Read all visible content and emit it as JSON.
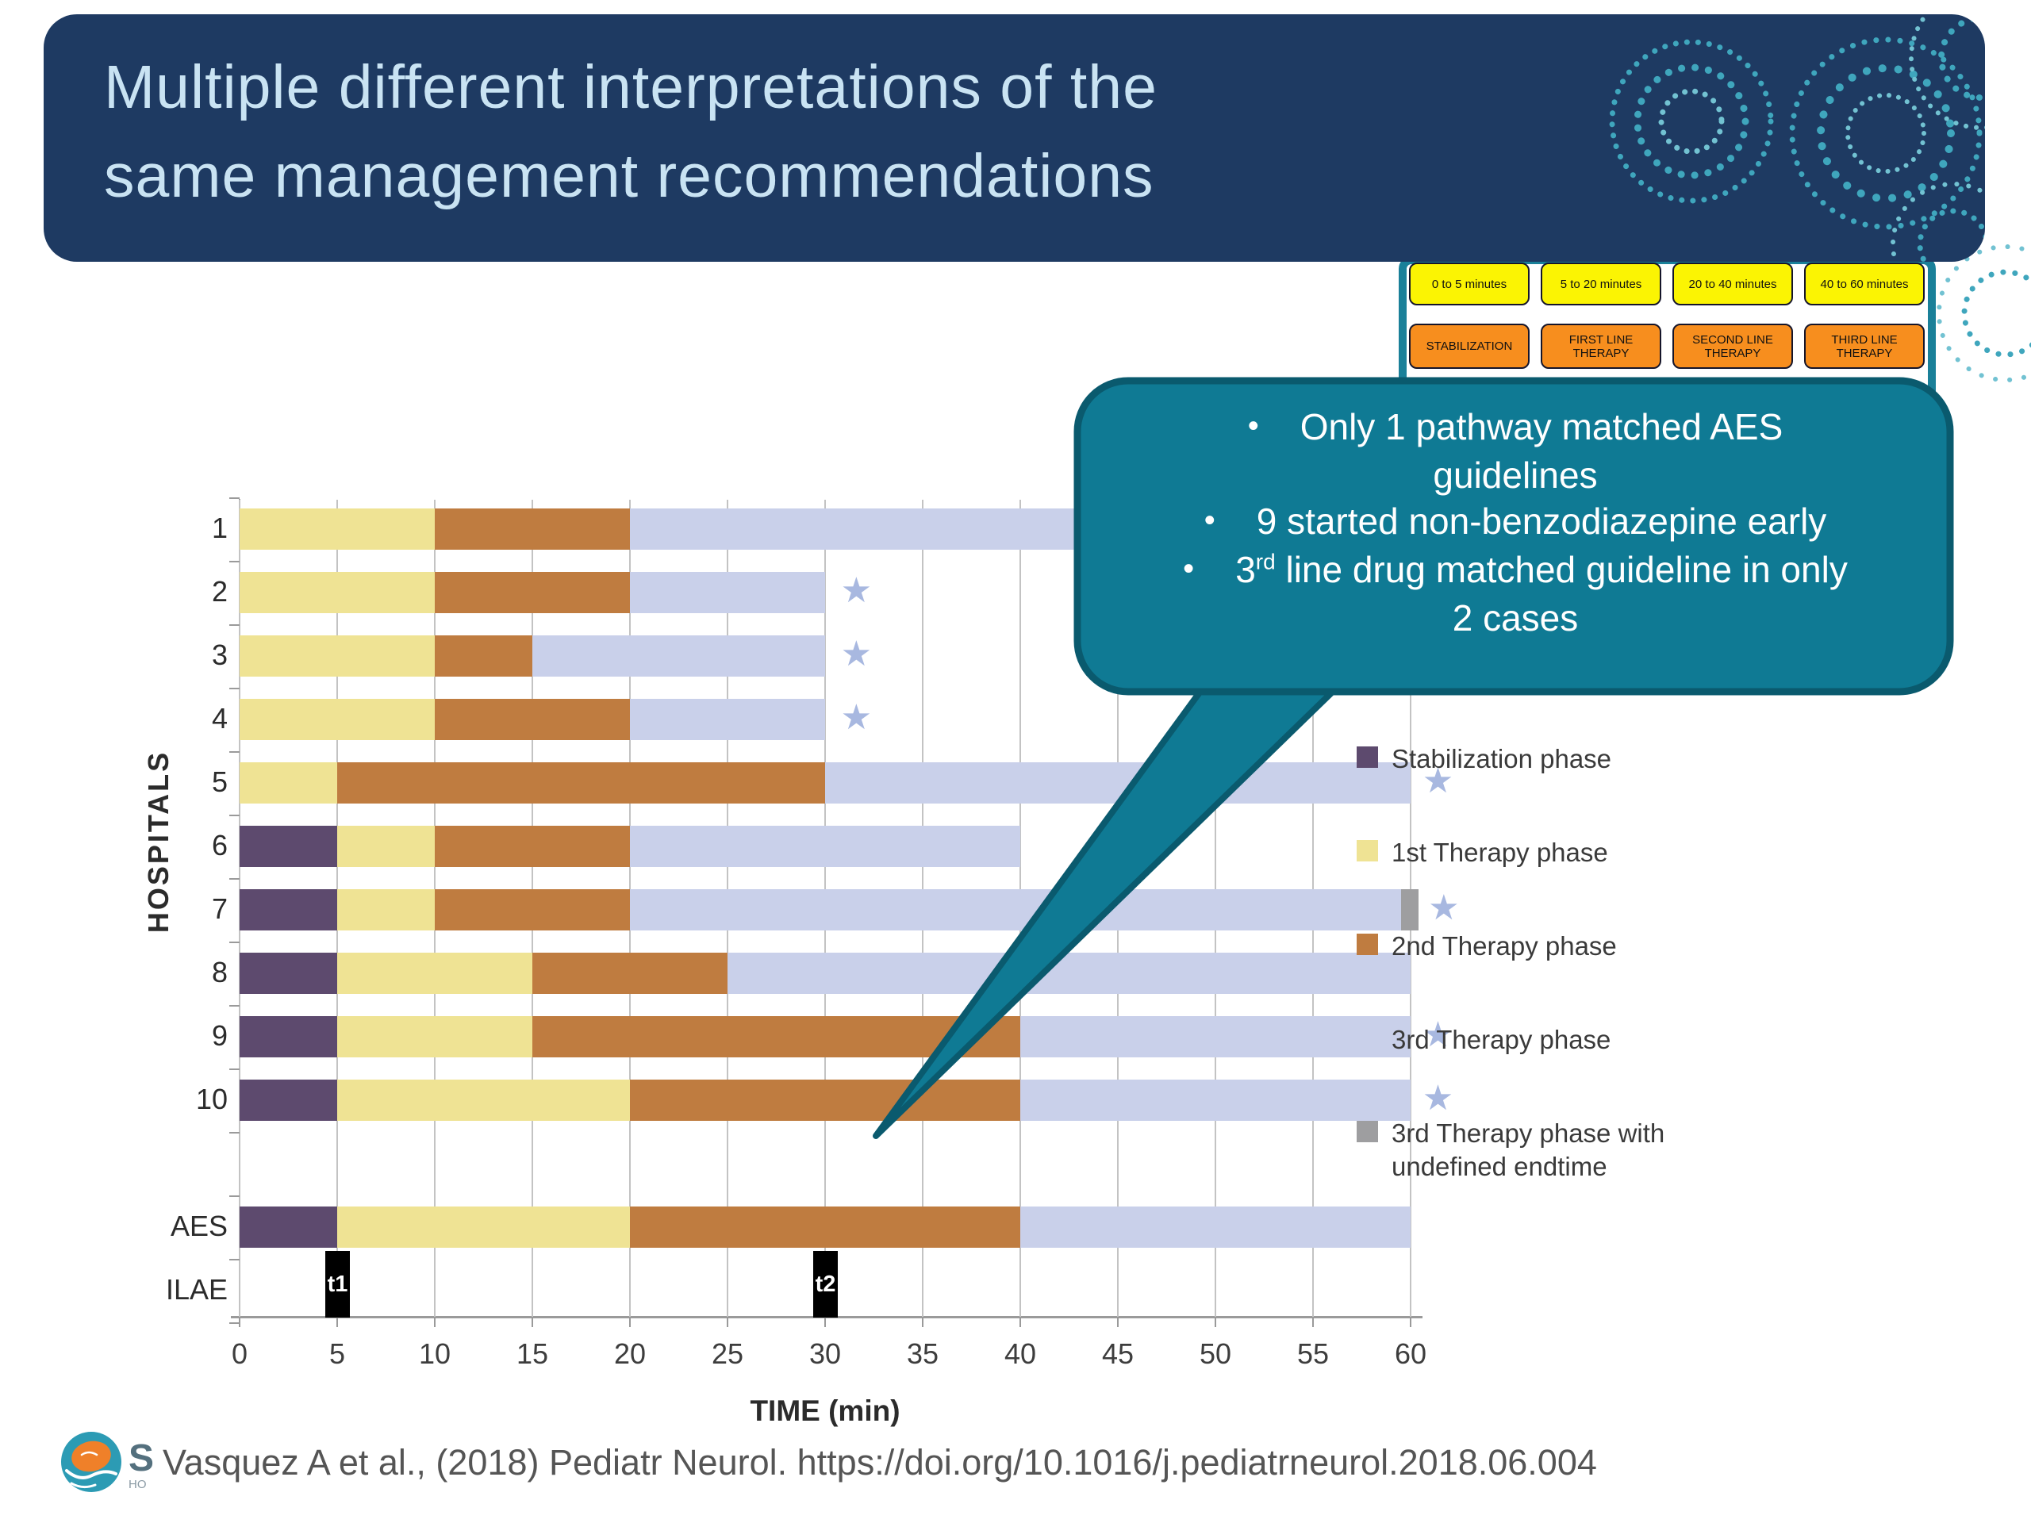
{
  "header": {
    "title_line1": "Multiple different interpretations of the",
    "title_line2": "same management recommendations",
    "background_color": "#1e3a62",
    "title_color": "#c9e3f3",
    "decoration_color": "#3fa6bd"
  },
  "flow": {
    "time_row": [
      "0 to 5 minutes",
      "5 to 20 minutes",
      "20 to 40 minutes",
      "40 to 60 minutes"
    ],
    "phase_row": [
      "STABILIZATION",
      "FIRST LINE THERAPY",
      "SECOND LINE THERAPY",
      "THIRD LINE THERAPY"
    ],
    "time_box_color": "#fbf403",
    "phase_box_color": "#f78e1e",
    "frame_color": "#1a8099"
  },
  "callout": {
    "fill_color": "#0f7a94",
    "border_color": "#0a5a6e",
    "bullet1_line1": "Only 1 pathway matched AES",
    "bullet1_line2": "guidelines",
    "bullet2": "9 started non-benzodiazepine early",
    "bullet3_num": "3",
    "bullet3_sup": "rd",
    "bullet3_rest": " line drug matched guideline in only",
    "bullet3_line2": "2 cases"
  },
  "chart_data": {
    "type": "bar",
    "subtype": "horizontal-stacked-timeline",
    "xlabel": "TIME (min)",
    "ylabel": "HOSPITALS",
    "xlim": [
      0,
      60
    ],
    "x_ticks": [
      0,
      5,
      10,
      15,
      20,
      25,
      30,
      35,
      40,
      45,
      50,
      55,
      60
    ],
    "grid": true,
    "legend_position": "right",
    "star_char": "★",
    "star_color": "#a8b8e0",
    "star_note": "star marker drawn just after bar end",
    "phases": [
      {
        "id": "stab",
        "label": "Stabilization phase",
        "color": "#5d4a6e"
      },
      {
        "id": "1st",
        "label": "1st Therapy phase",
        "color": "#efe394"
      },
      {
        "id": "2nd",
        "label": "2nd Therapy phase",
        "color": "#bf7c40"
      },
      {
        "id": "3rd",
        "label": "3rd Therapy phase",
        "color": "#c9d0ea"
      },
      {
        "id": "undef",
        "label": "3rd Therapy phase with undefined endtime",
        "color": "#9e9ea0"
      }
    ],
    "rows": [
      {
        "label": "1",
        "segments": [
          {
            "phase": "1st",
            "start": 0,
            "end": 10
          },
          {
            "phase": "2nd",
            "start": 10,
            "end": 20
          },
          {
            "phase": "3rd",
            "start": 20,
            "end": 60
          }
        ],
        "star_at": null
      },
      {
        "label": "2",
        "segments": [
          {
            "phase": "1st",
            "start": 0,
            "end": 10
          },
          {
            "phase": "2nd",
            "start": 10,
            "end": 20
          },
          {
            "phase": "3rd",
            "start": 20,
            "end": 30
          }
        ],
        "star_at": 30.8
      },
      {
        "label": "3",
        "segments": [
          {
            "phase": "1st",
            "start": 0,
            "end": 10
          },
          {
            "phase": "2nd",
            "start": 10,
            "end": 15
          },
          {
            "phase": "3rd",
            "start": 15,
            "end": 30
          }
        ],
        "star_at": 30.8
      },
      {
        "label": "4",
        "segments": [
          {
            "phase": "1st",
            "start": 0,
            "end": 10
          },
          {
            "phase": "2nd",
            "start": 10,
            "end": 20
          },
          {
            "phase": "3rd",
            "start": 20,
            "end": 30
          }
        ],
        "star_at": 30.8
      },
      {
        "label": "5",
        "segments": [
          {
            "phase": "1st",
            "start": 0,
            "end": 5
          },
          {
            "phase": "2nd",
            "start": 5,
            "end": 30
          },
          {
            "phase": "3rd",
            "start": 30,
            "end": 60
          }
        ],
        "star_at": 60.6
      },
      {
        "label": "6",
        "segments": [
          {
            "phase": "stab",
            "start": 0,
            "end": 5
          },
          {
            "phase": "1st",
            "start": 5,
            "end": 10
          },
          {
            "phase": "2nd",
            "start": 10,
            "end": 20
          },
          {
            "phase": "3rd",
            "start": 20,
            "end": 40
          }
        ],
        "star_at": null
      },
      {
        "label": "7",
        "segments": [
          {
            "phase": "stab",
            "start": 0,
            "end": 5
          },
          {
            "phase": "1st",
            "start": 5,
            "end": 10
          },
          {
            "phase": "2nd",
            "start": 10,
            "end": 20
          },
          {
            "phase": "3rd",
            "start": 20,
            "end": 59.5
          },
          {
            "phase": "undef",
            "start": 59.5,
            "end": 60.4
          }
        ],
        "star_at": 60.9
      },
      {
        "label": "8",
        "segments": [
          {
            "phase": "stab",
            "start": 0,
            "end": 5
          },
          {
            "phase": "1st",
            "start": 5,
            "end": 15
          },
          {
            "phase": "2nd",
            "start": 15,
            "end": 25
          },
          {
            "phase": "3rd",
            "start": 25,
            "end": 60
          }
        ],
        "star_at": null
      },
      {
        "label": "9",
        "segments": [
          {
            "phase": "stab",
            "start": 0,
            "end": 5
          },
          {
            "phase": "1st",
            "start": 5,
            "end": 15
          },
          {
            "phase": "2nd",
            "start": 15,
            "end": 40
          },
          {
            "phase": "3rd",
            "start": 40,
            "end": 60
          }
        ],
        "star_at": 60.6
      },
      {
        "label": "10",
        "segments": [
          {
            "phase": "stab",
            "start": 0,
            "end": 5
          },
          {
            "phase": "1st",
            "start": 5,
            "end": 20
          },
          {
            "phase": "2nd",
            "start": 20,
            "end": 40
          },
          {
            "phase": "3rd",
            "start": 40,
            "end": 60
          }
        ],
        "star_at": 60.6
      },
      {
        "label": "AES",
        "segments": [
          {
            "phase": "stab",
            "start": 0,
            "end": 5
          },
          {
            "phase": "1st",
            "start": 5,
            "end": 20
          },
          {
            "phase": "2nd",
            "start": 20,
            "end": 40
          },
          {
            "phase": "3rd",
            "start": 40,
            "end": 60
          }
        ],
        "star_at": null
      },
      {
        "label": "ILAE",
        "segments": [],
        "markers": [
          {
            "label": "t1",
            "t": 5
          },
          {
            "label": "t2",
            "t": 30
          }
        ],
        "star_at": null
      }
    ]
  },
  "footer": {
    "citation": "Vasquez A et al., (2018) Pediatr Neurol. https://doi.org/10.1016/j.pediatrneurol.2018.06.004",
    "logo_text_s": "S",
    "logo_text_ho": "HO"
  }
}
